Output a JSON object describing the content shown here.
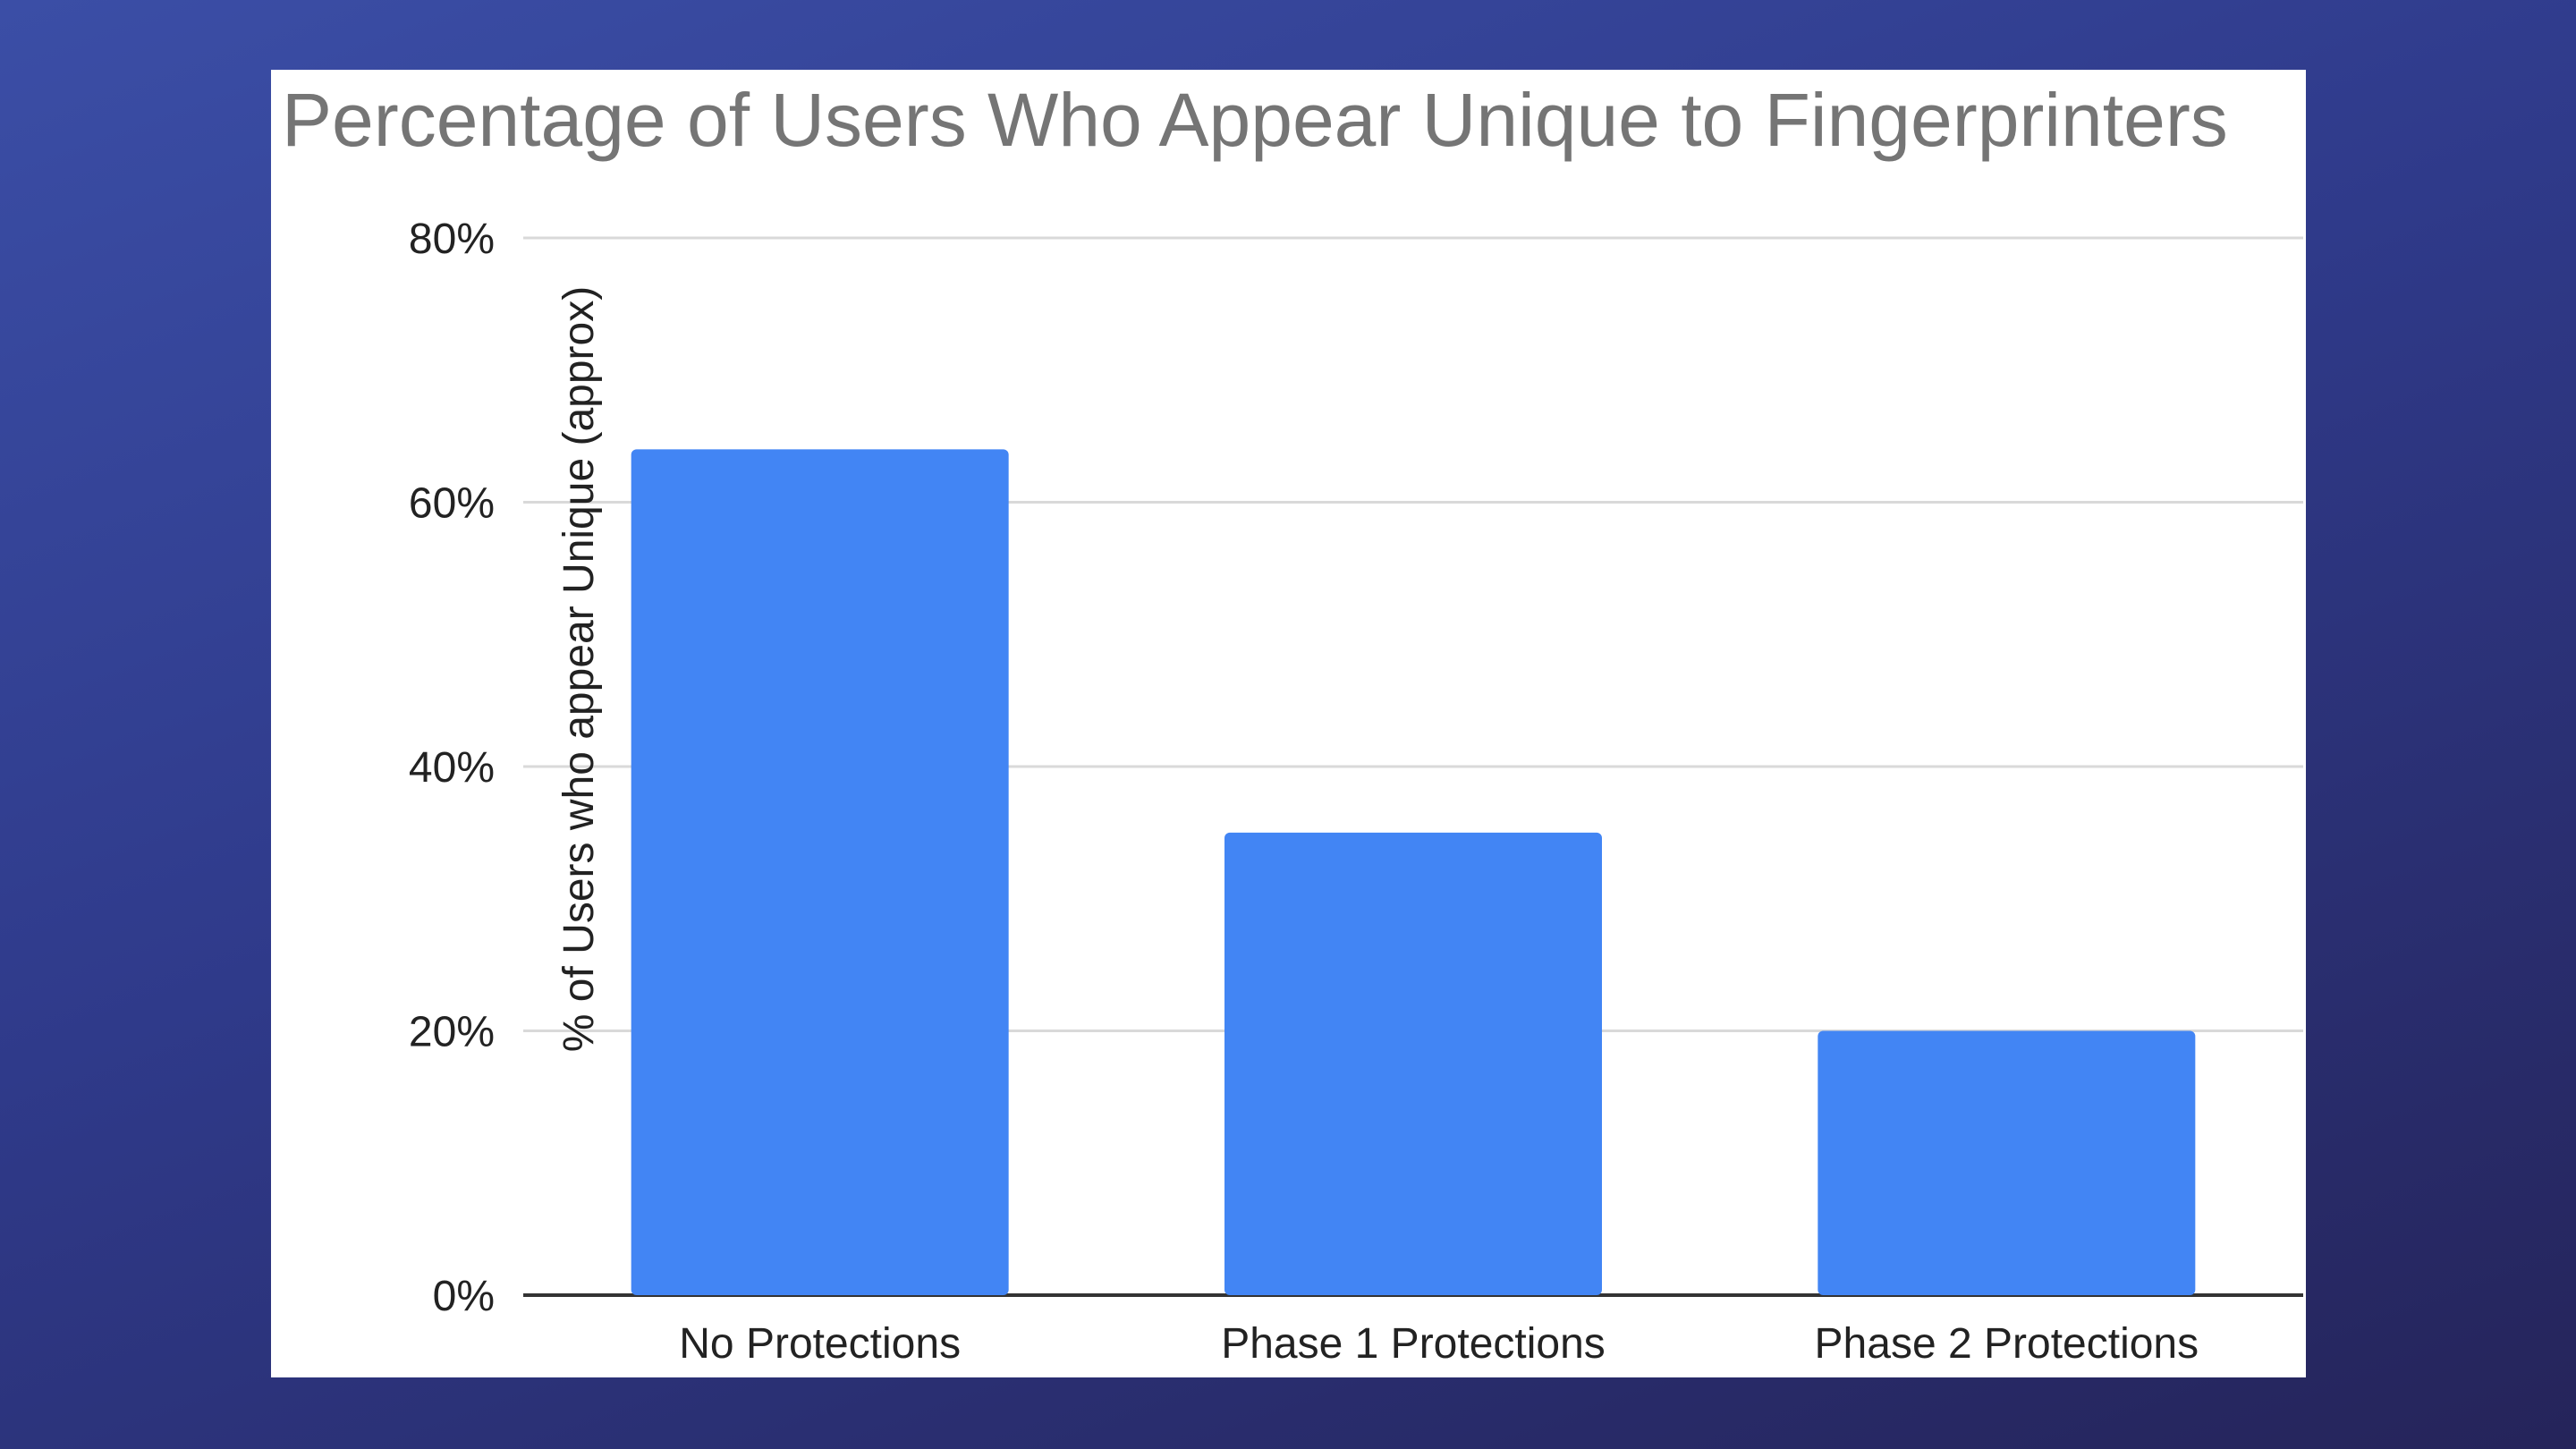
{
  "chart_data": {
    "type": "bar",
    "title": "Percentage of Users Who Appear Unique to Fingerprinters",
    "xlabel": "",
    "ylabel": "% of Users who appear Unique (approx)",
    "categories": [
      "No Protections",
      "Phase 1 Protections",
      "Phase 2 Protections"
    ],
    "series": [
      {
        "values": [
          64,
          35,
          20
        ]
      }
    ],
    "ylim": [
      0,
      80
    ],
    "yticks": [
      {
        "value": 0,
        "label": "0%"
      },
      {
        "value": 20,
        "label": "20%"
      },
      {
        "value": 40,
        "label": "40%"
      },
      {
        "value": 60,
        "label": "60%"
      },
      {
        "value": 80,
        "label": "80%"
      }
    ],
    "grid": true,
    "legend": "none",
    "colors": {
      "bar": "#4285f4",
      "grid": "#d9d9d9",
      "baseline": "#333333",
      "title": "#757575",
      "background_top": "#3b4ea6",
      "background_bottom": "#25245a"
    }
  }
}
